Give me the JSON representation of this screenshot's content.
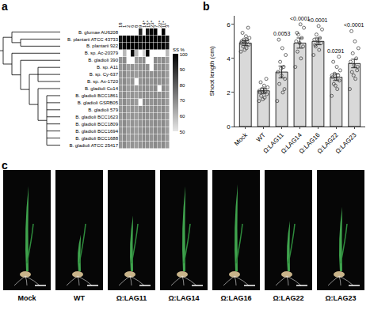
{
  "panel_labels": [
    "a",
    "b",
    "c"
  ],
  "chart_data": [
    {
      "type": "heatmap",
      "x": [
        "18",
        "1",
        "2",
        "6",
        "8",
        "9",
        "14*",
        "15*",
        "23*",
        "7",
        "22*",
        "11*",
        "3"
      ],
      "y": [
        "B. glumae AU6208",
        "B. plantarii ATCC 43733",
        "B. plantarii 922",
        "B. sp. Ac-20379",
        "B. gladioli 390",
        "B. sp. A11",
        "B. sp. Cy-637",
        "B. sp. Ax-1720",
        "B. gladioli Co14",
        "B. gladioli BCC1861",
        "B. gladioli GSRB05",
        "B. gladioli 579",
        "B. gladioli BCC1623",
        "B. gladioli BCC1809",
        "B. gladioli BCC1694",
        "B. gladioli BCC1688",
        "B. gladioli ATCC 25417"
      ],
      "cells": [
        [
          null,
          null,
          null,
          null,
          null,
          92,
          null,
          95,
          98,
          100,
          null,
          100,
          null
        ],
        [
          95,
          98,
          100,
          100,
          100,
          97,
          100,
          100,
          100,
          100,
          98,
          100,
          95
        ],
        [
          95,
          98,
          100,
          100,
          100,
          97,
          100,
          100,
          100,
          100,
          98,
          100,
          95
        ],
        [
          null,
          60,
          null,
          98,
          60,
          null,
          55,
          100,
          null,
          null,
          null,
          null,
          60
        ],
        [
          68,
          70,
          null,
          null,
          66,
          68,
          70,
          null,
          null,
          70,
          68,
          70,
          66
        ],
        [
          67,
          70,
          66,
          68,
          66,
          68,
          70,
          69,
          null,
          70,
          68,
          70,
          66
        ],
        [
          67,
          70,
          66,
          68,
          66,
          68,
          70,
          69,
          68,
          70,
          68,
          70,
          66
        ],
        [
          67,
          70,
          66,
          68,
          null,
          68,
          70,
          69,
          68,
          70,
          68,
          70,
          66
        ],
        [
          67,
          70,
          66,
          68,
          66,
          68,
          70,
          69,
          68,
          70,
          null,
          70,
          66
        ],
        [
          67,
          70,
          66,
          68,
          66,
          68,
          70,
          69,
          68,
          70,
          68,
          70,
          66
        ],
        [
          67,
          70,
          66,
          68,
          66,
          null,
          70,
          69,
          68,
          70,
          68,
          70,
          66
        ],
        [
          67,
          70,
          66,
          68,
          66,
          68,
          70,
          69,
          68,
          70,
          68,
          70,
          66
        ],
        [
          67,
          70,
          66,
          68,
          66,
          68,
          70,
          69,
          68,
          70,
          68,
          70,
          66
        ],
        [
          67,
          70,
          66,
          68,
          66,
          68,
          70,
          69,
          68,
          70,
          68,
          70,
          66
        ],
        [
          67,
          70,
          66,
          68,
          66,
          68,
          70,
          69,
          68,
          70,
          68,
          70,
          66
        ],
        [
          67,
          70,
          66,
          68,
          66,
          68,
          70,
          69,
          68,
          70,
          68,
          70,
          66
        ],
        [
          67,
          70,
          66,
          68,
          66,
          68,
          70,
          69,
          68,
          70,
          68,
          70,
          66
        ]
      ],
      "colorbar": {
        "title": "SS %",
        "range": [
          50,
          100
        ],
        "ticks": [
          50,
          60,
          70,
          80,
          90,
          100
        ]
      }
    },
    {
      "type": "bar",
      "categories": [
        "Mock",
        "WT",
        "Ω:LAG11",
        "Ω:LAG14",
        "Ω:LAG16",
        "Ω:LAG22",
        "Ω:LAG23"
      ],
      "values": [
        4.9,
        2.1,
        3.2,
        4.9,
        5.0,
        2.9,
        3.7
      ],
      "errors": [
        0.15,
        0.15,
        0.35,
        0.3,
        0.2,
        0.2,
        0.25
      ],
      "points": [
        [
          4.4,
          4.6,
          4.7,
          4.8,
          4.9,
          5.0,
          5.0,
          5.1,
          5.2,
          5.3,
          5.5,
          5.8,
          4.5,
          4.9,
          5.1,
          5.0
        ],
        [
          1.5,
          1.7,
          1.8,
          1.9,
          2.0,
          2.0,
          2.1,
          2.2,
          2.3,
          2.4,
          2.6,
          2.8,
          1.6,
          2.1
        ],
        [
          1.5,
          2.0,
          2.5,
          2.8,
          3.0,
          3.2,
          3.5,
          3.8,
          4.2,
          4.6,
          5.1,
          2.2,
          3.4
        ],
        [
          3.5,
          4.0,
          4.4,
          4.7,
          4.9,
          5.0,
          5.2,
          5.4,
          5.8,
          6.0,
          5.5
        ],
        [
          4.2,
          4.5,
          4.7,
          4.9,
          5.0,
          5.1,
          5.2,
          5.4,
          5.7,
          5.9,
          4.8
        ],
        [
          1.8,
          2.2,
          2.5,
          2.7,
          2.8,
          2.9,
          3.0,
          3.1,
          3.3,
          3.5,
          3.8,
          4.1,
          2.4,
          3.0
        ],
        [
          2.2,
          2.8,
          3.2,
          3.5,
          3.6,
          3.8,
          4.0,
          4.3,
          4.6,
          5.0,
          5.6,
          3.3,
          3.0
        ]
      ],
      "annotations": [
        {
          "category": "Ω:LAG11",
          "text": "0.0053"
        },
        {
          "category": "Ω:LAG14",
          "text": "<0.0001"
        },
        {
          "category": "Ω:LAG16",
          "text": "<0.0001"
        },
        {
          "category": "Ω:LAG22",
          "text": "0.0291"
        },
        {
          "category": "Ω:LAG23",
          "text": "<0.0001"
        }
      ],
      "y_label": "Shoot length (cm)",
      "ylim": [
        0,
        6.5
      ],
      "yticks": [
        0,
        2,
        4,
        6
      ],
      "color": "#d9d9d9"
    }
  ],
  "photos": {
    "labels": [
      "Mock",
      "WT",
      "Ω:LAG11",
      "Ω:LAG14",
      "Ω:LAG16",
      "Ω:LAG22",
      "Ω:LAG23"
    ]
  }
}
